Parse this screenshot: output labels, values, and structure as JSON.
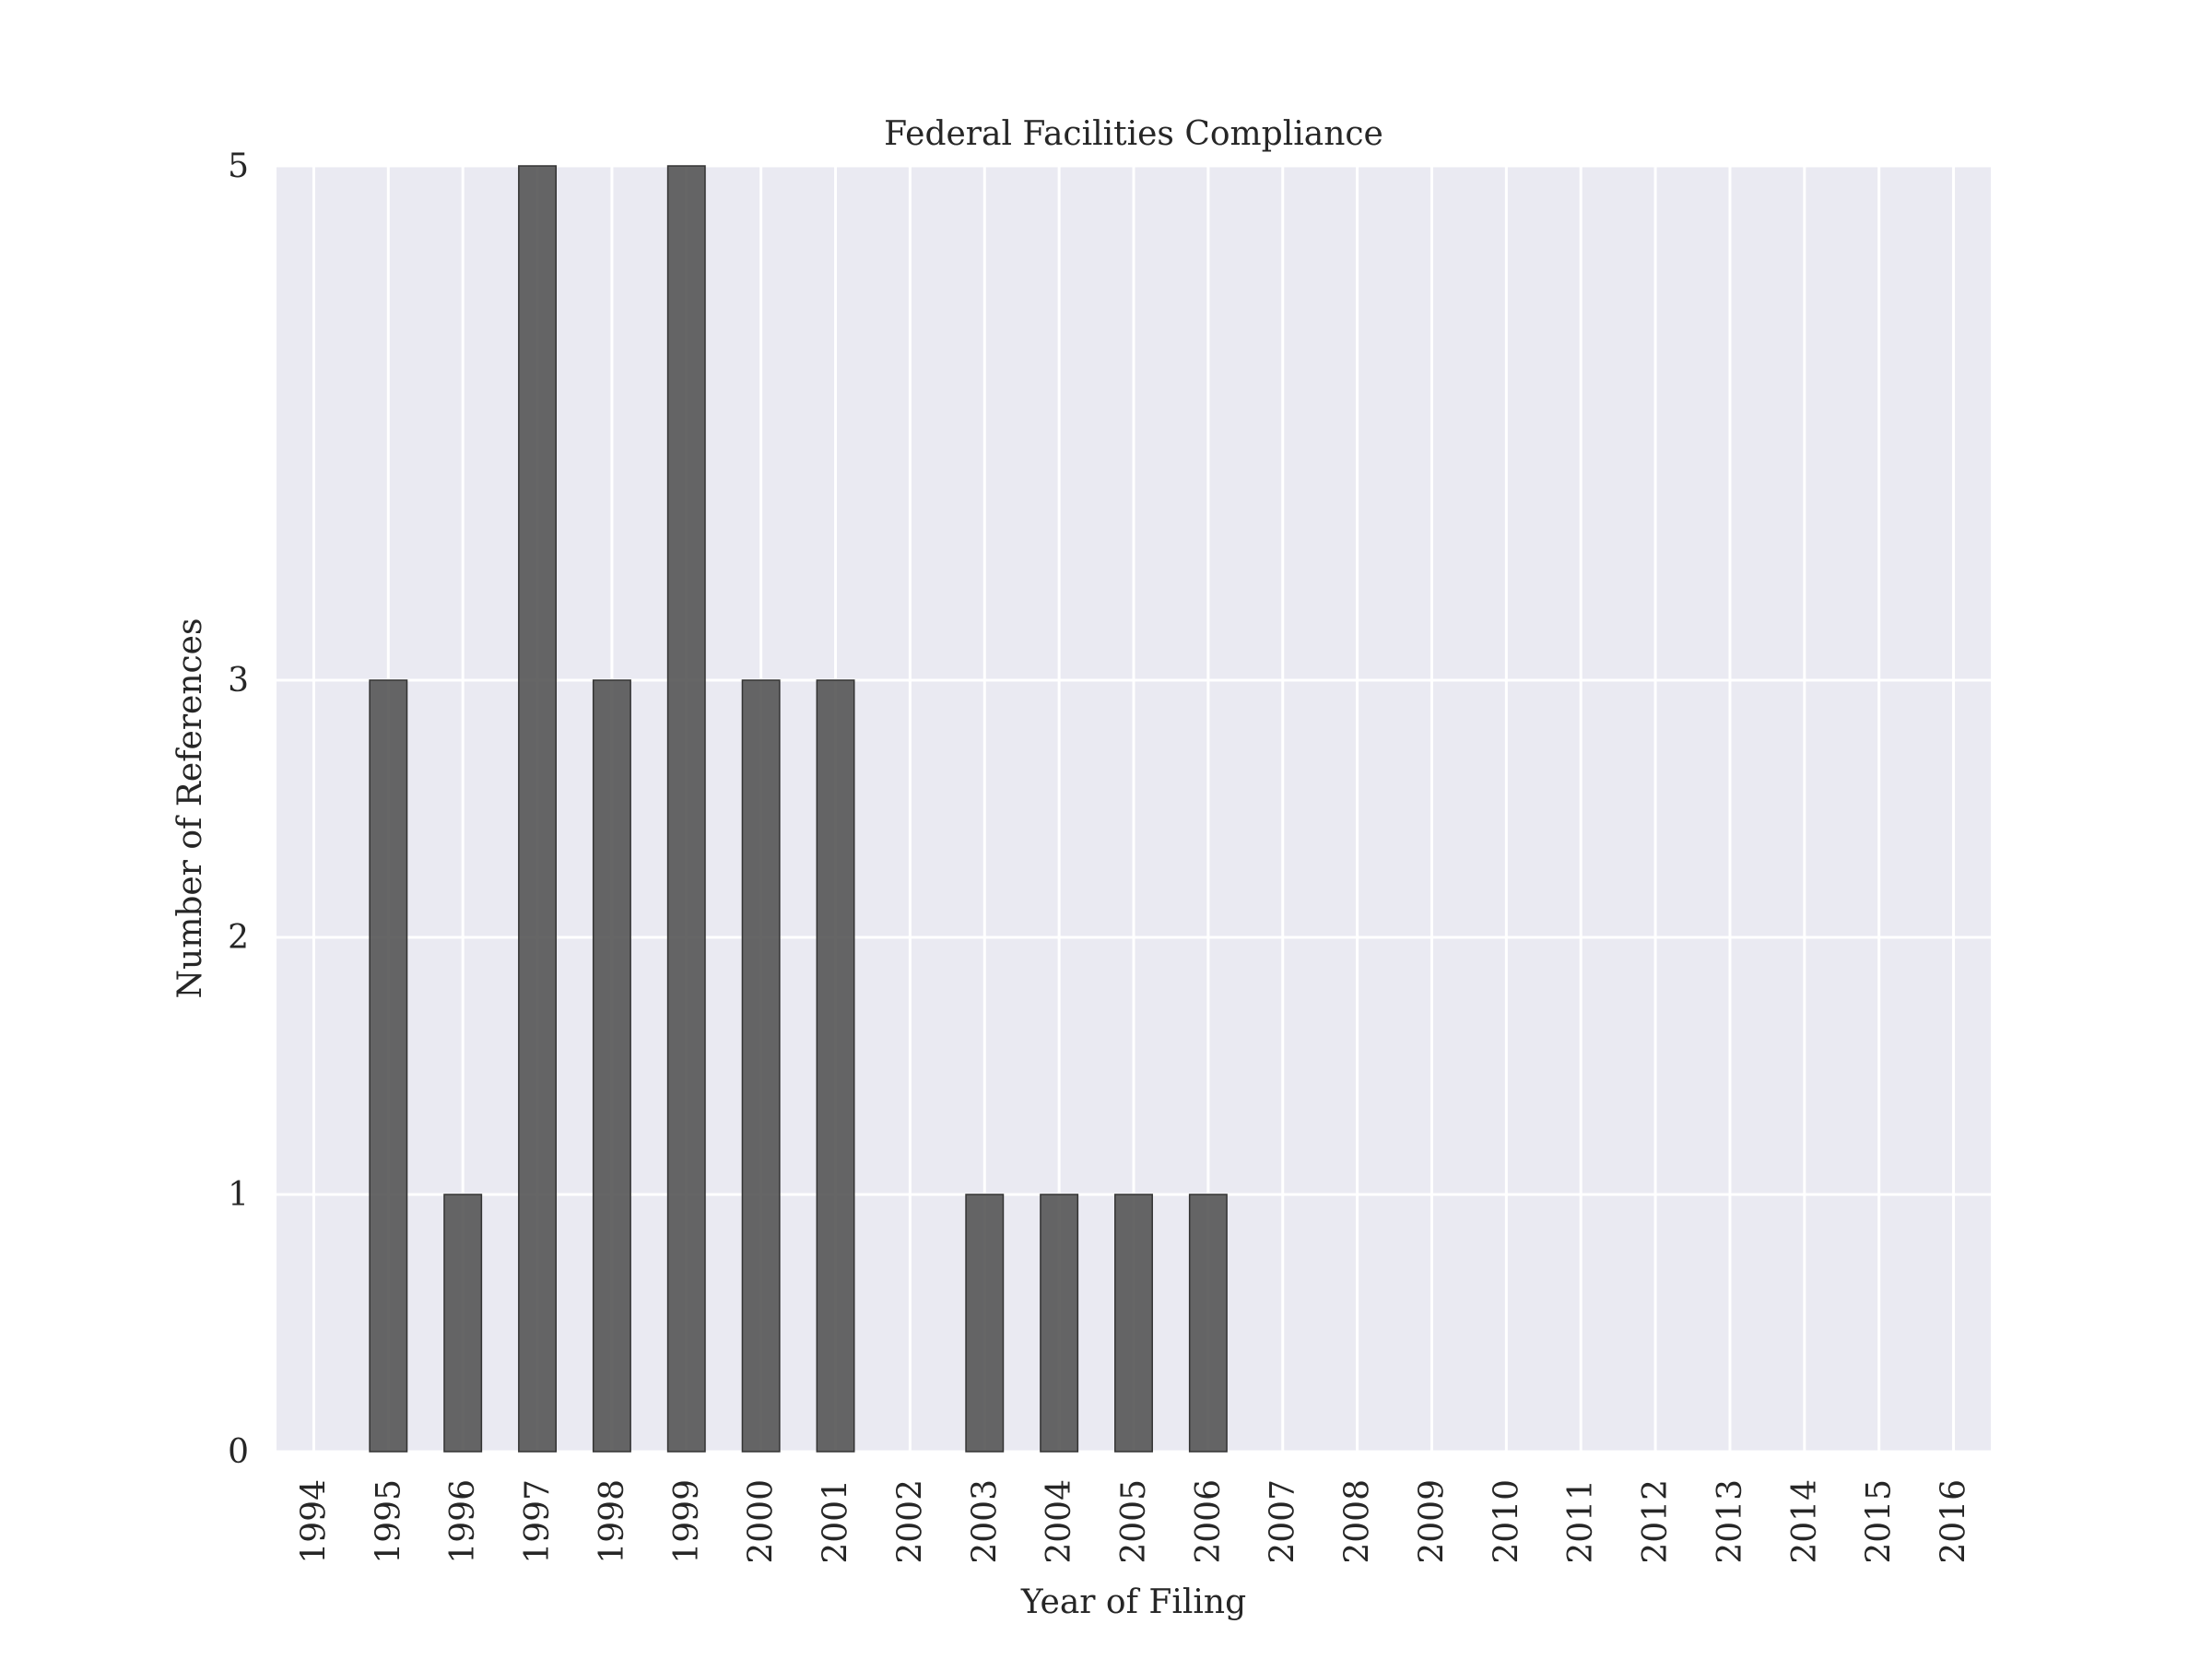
{
  "chart_data": {
    "type": "bar",
    "title": "Federal Facilities Compliance",
    "xlabel": "Year of Filing",
    "ylabel": "Number of References",
    "categories": [
      "1994",
      "1995",
      "1996",
      "1997",
      "1998",
      "1999",
      "2000",
      "2001",
      "2002",
      "2003",
      "2004",
      "2005",
      "2006",
      "2007",
      "2008",
      "2009",
      "2010",
      "2011",
      "2012",
      "2013",
      "2014",
      "2015",
      "2016"
    ],
    "values": [
      0,
      3,
      1,
      5,
      3,
      5,
      3,
      3,
      0,
      1,
      1,
      1,
      1,
      0,
      0,
      0,
      0,
      0,
      0,
      0,
      0,
      0,
      0
    ],
    "y_ticks": [
      0,
      1,
      2,
      3,
      5
    ],
    "ylim": [
      0,
      5
    ],
    "grid": true,
    "legend": "none",
    "colors": {
      "plot_background": "#eaeaf2",
      "grid": "#ffffff",
      "bar_fill": "#555555",
      "bar_edge": "#333333",
      "text": "#262626"
    }
  }
}
